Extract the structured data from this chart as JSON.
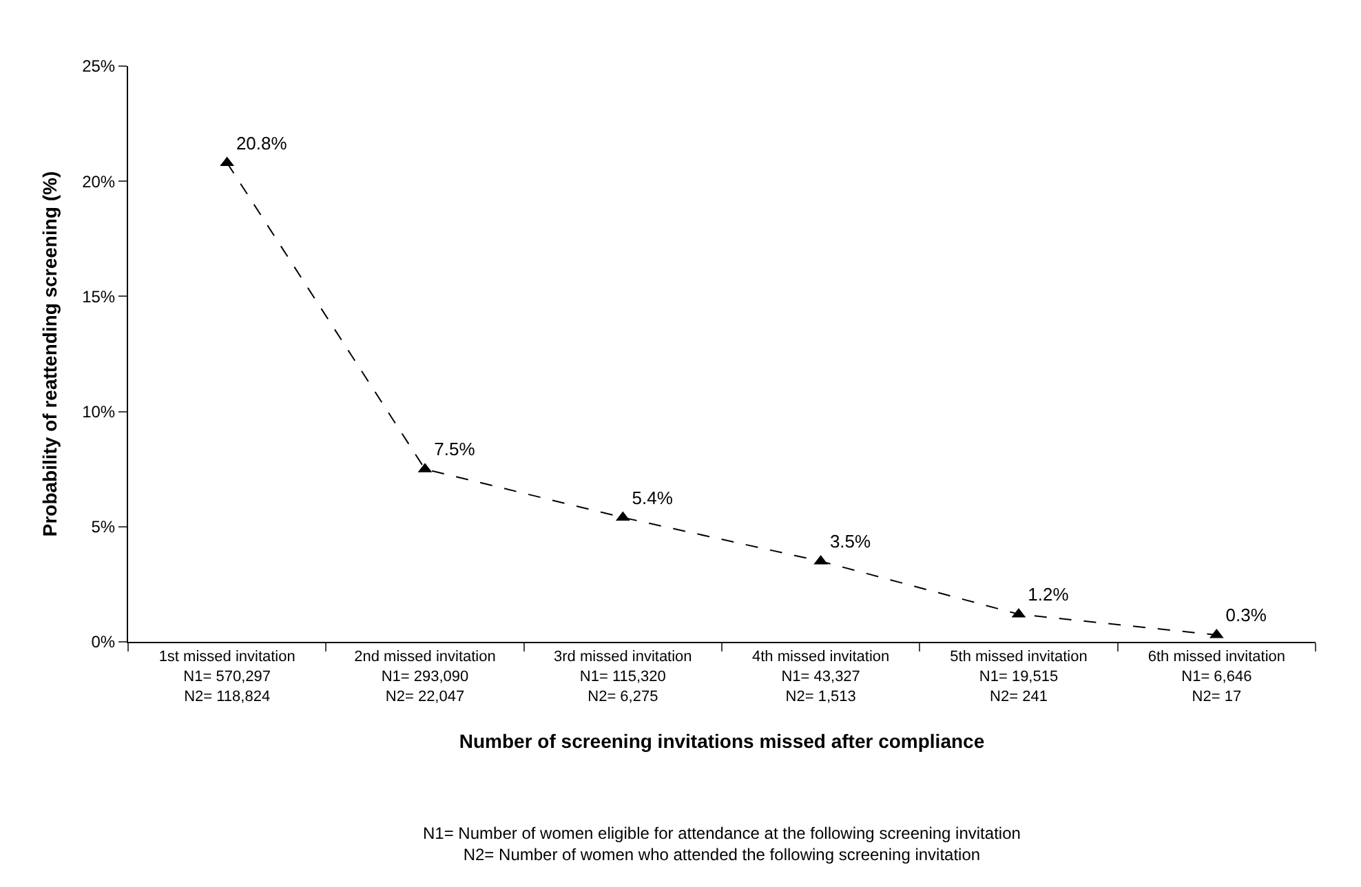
{
  "chart_data": {
    "type": "line",
    "xlabel": "Number of screening invitations missed after compliance",
    "ylabel": "Probability of reattending screening (%)",
    "categories": [
      "1st missed invitation\nN1= 570,297\nN2= 118,824",
      "2nd missed invitation\nN1= 293,090\nN2= 22,047",
      "3rd missed invitation\nN1= 115,320\nN2= 6,275",
      "4th missed invitation\nN1= 43,327\nN2= 1,513",
      "5th missed invitation\nN1= 19,515\nN2= 241",
      "6th missed invitation\nN1= 6,646\nN2= 17"
    ],
    "series": [
      {
        "color": "#000000",
        "values": [
          20.8,
          7.5,
          5.4,
          3.5,
          1.2,
          0.3
        ],
        "value_labels": [
          "20.8%",
          "7.5%",
          "5.4%",
          "3.5%",
          "1.2%",
          "0.3%"
        ]
      }
    ],
    "ylim": [
      0,
      25
    ],
    "yticks": [
      {
        "value": 0,
        "label": "0%"
      },
      {
        "value": 5,
        "label": "5%"
      },
      {
        "value": 10,
        "label": "10%"
      },
      {
        "value": 15,
        "label": "15%"
      },
      {
        "value": 20,
        "label": "20%"
      },
      {
        "value": 25,
        "label": "25%"
      }
    ],
    "marker": "triangle",
    "line_style": "dashed",
    "annotations": [
      "N1= Number of women eligible for attendance at the following screening invitation\nN2= Number of women who attended the following screening invitation"
    ]
  }
}
